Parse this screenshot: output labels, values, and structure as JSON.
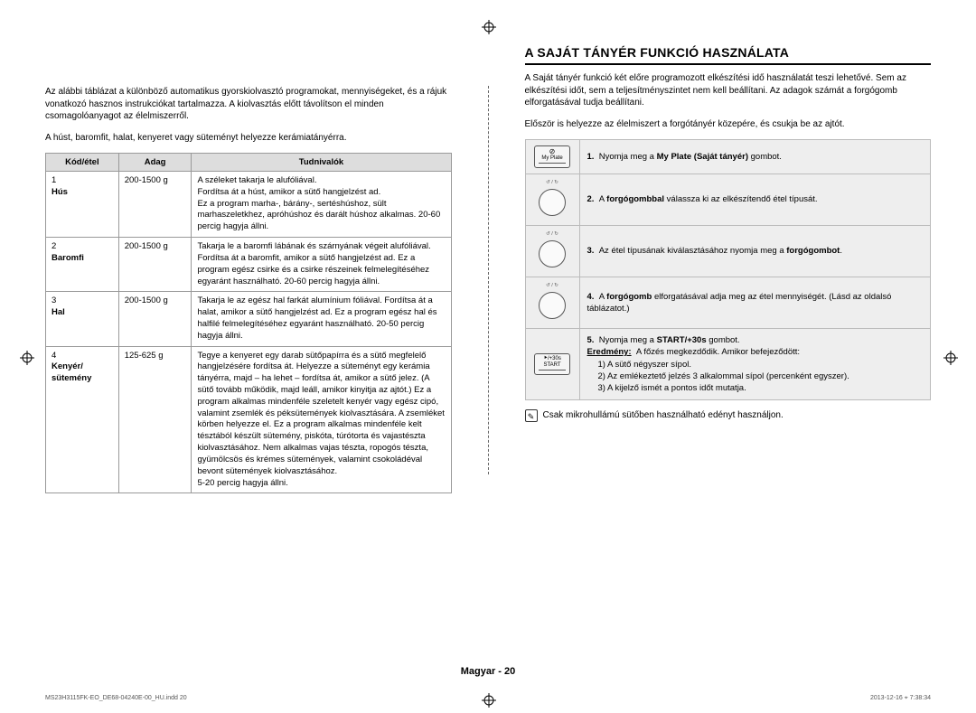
{
  "left": {
    "intro1": "Az alábbi táblázat a különböző automatikus gyorskiolvasztó programokat, mennyiségeket, és a rájuk vonatkozó hasznos instrukciókat tartalmazza. A kiolvasztás előtt távolítson el minden csomagolóanyagot az élelmiszerről.",
    "intro2": "A húst, baromfit, halat, kenyeret vagy süteményt helyezze kerámiatányérra.",
    "headers": {
      "code": "Kód/étel",
      "portion": "Adag",
      "info": "Tudnivalók"
    },
    "rows": [
      {
        "num": "1",
        "name": "Hús",
        "portion": "200-1500 g",
        "info": "A széleket takarja le alufóliával.\nFordítsa át a húst, amikor a sütő hangjelzést ad.\nEz a program marha-, bárány-, sertéshúshoz, sült marhaszeletkhez, apróhúshoz és darált húshoz alkalmas. 20-60 percig hagyja állni."
      },
      {
        "num": "2",
        "name": "Baromfi",
        "portion": "200-1500 g",
        "info": "Takarja le a baromfi lábának és szárnyának végeit alufóliával. Fordítsa át a baromfit, amikor a sütő hangjelzést ad. Ez a program egész csirke és a csirke részeinek felmelegítéséhez egyaránt használható. 20-60 percig hagyja állni."
      },
      {
        "num": "3",
        "name": "Hal",
        "portion": "200-1500 g",
        "info": "Takarja le az egész hal farkát alumínium fóliával. Fordítsa át a halat, amikor a sütő hangjelzést ad. Ez a program egész hal és halfilé felmelegítéséhez egyaránt használható. 20-50 percig hagyja állni."
      },
      {
        "num": "4",
        "name": "Kenyér/\nsütemény",
        "portion": "125-625 g",
        "info": "Tegye a kenyeret egy darab sütőpapírra és a sütő megfelelő hangjelzésére fordítsa át. Helyezze a süteményt egy kerámia tányérra, majd – ha lehet – fordítsa át, amikor a sütő jelez. (A sütő tovább működik, majd leáll, amikor kinyitja az ajtót.) Ez a program alkalmas mindenféle szeletelt kenyér vagy egész cipó, valamint zsemlék és péksütemények kiolvasztására. A zsemléket körben helyezze el. Ez a program alkalmas mindenféle kelt tésztából készült sütemény, piskóta, túrótorta és vajastészta kiolvasztásához. Nem alkalmas vajas tészta, ropogós tészta, gyümölcsös és krémes sütemények, valamint csokoládéval bevont sütemények kiolvasztásához.\n5-20 percig hagyja állni."
      }
    ]
  },
  "right": {
    "title": "A SAJÁT TÁNYÉR FUNKCIÓ HASZNÁLATA",
    "intro1": "A Saját tányér funkció két előre programozott elkészítési idő használatát teszi lehetővé. Sem az elkészítési időt, sem a teljesítményszintet nem kell beállítani. Az adagok számát a forgógomb elforgatásával tudja beállítani.",
    "intro2": "Először is helyezze az élelmiszert a forgótányér közepére, és csukja be az ajtót.",
    "steps": [
      {
        "icon": "myplate",
        "num": "1.",
        "text": "Nyomja meg a <b>My Plate (Saját tányér)</b> gombot."
      },
      {
        "icon": "dial",
        "num": "2.",
        "text": "A <b>forgógombbal</b> válassza ki az elkészítendő étel típusát."
      },
      {
        "icon": "dial",
        "num": "3.",
        "text": "Az étel típusának kiválasztásához nyomja meg a <b>forgógombot</b>."
      },
      {
        "icon": "dial",
        "num": "4.",
        "text": "A <b>forgógomb</b> elforgatásával adja meg az étel mennyiségét. (Lásd az oldalsó táblázatot.)"
      },
      {
        "icon": "start",
        "num": "5.",
        "text": "Nyomja meg a <b>START/+30s</b> gombot.<br><b><u>Eredmény:</u></b>&nbsp;&nbsp;A főzés megkezdődik. Amikor befejeződött:",
        "sub": [
          "1)   A sütő négyszer sípol.",
          "2)   Az emlékeztető jelzés 3 alkalommal sípol (percenként egyszer).",
          "3)   A kijelző ismét a pontos időt mutatja."
        ]
      }
    ],
    "note": "Csak mikrohullámú sütőben használható edényt használjon."
  },
  "footer": "Magyar - 20",
  "printfile": "MS23H3115FK-EO_DE68-04240E-00_HU.indd   20",
  "printtime": "2013-12-16   ⌖ 7:38:34",
  "icons": {
    "myplate_label": "My Plate",
    "start_label": "START",
    "start_top": "⯈/+30s",
    "dial_top": "↺ / ↻"
  },
  "colors": {
    "header_bg": "#dddddd",
    "steps_bg": "#eeeeee",
    "border": "#999999",
    "text": "#000000"
  }
}
